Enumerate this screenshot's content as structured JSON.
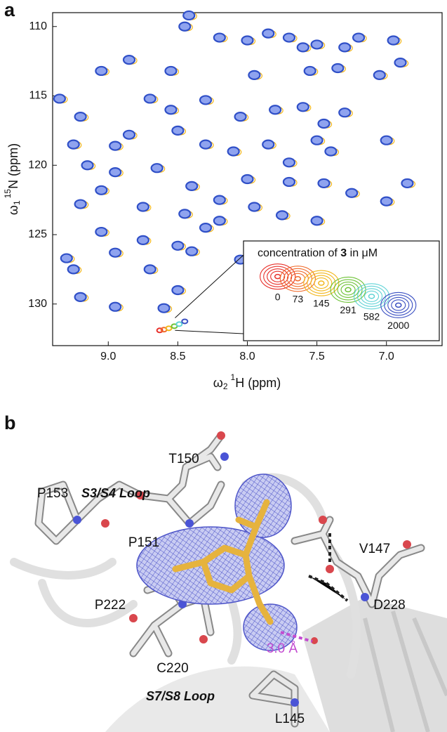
{
  "panel_labels": [
    "a",
    "b"
  ],
  "chart_data": {
    "type": "contour",
    "x_label": [
      "ω",
      "2",
      "1",
      "H (ppm)"
    ],
    "y_label": [
      "ω",
      "1",
      "15",
      "N (ppm)"
    ],
    "xlim": [
      9.4,
      6.6
    ],
    "ylim": [
      109,
      133
    ],
    "xticks": [
      {
        "value": 9,
        "label": "9.0"
      },
      8.5,
      {
        "value": 8,
        "label": "8.0"
      },
      7.5,
      {
        "value": 7,
        "label": "7.0"
      }
    ],
    "yticks": [
      110,
      115,
      120,
      125,
      130
    ],
    "color": "#2f4fc7",
    "x": [
      8.45,
      8.42,
      8.2,
      8.0,
      7.85,
      7.7,
      7.6,
      7.5,
      7.3,
      7.2,
      6.95,
      6.9,
      7.05,
      7.35,
      7.55,
      7.95,
      8.55,
      8.85,
      9.05,
      8.7,
      8.55,
      8.3,
      8.05,
      7.8,
      7.6,
      7.45,
      7.3,
      9.2,
      9.35,
      9.25,
      8.95,
      8.85,
      8.5,
      8.3,
      8.1,
      7.85,
      7.7,
      7.5,
      7.4,
      7.0,
      9.15,
      8.95,
      8.65,
      8.4,
      8.2,
      8.0,
      7.7,
      7.45,
      7.25,
      7.0,
      6.85,
      9.2,
      9.05,
      8.75,
      8.45,
      8.2,
      7.95,
      7.75,
      7.5,
      9.05,
      8.75,
      8.5,
      8.3,
      9.3,
      9.25,
      8.95,
      8.7,
      8.4,
      8.05,
      9.2,
      8.95,
      8.6,
      8.5
    ],
    "values": [
      110.0,
      109.2,
      110.8,
      111.0,
      110.5,
      110.8,
      111.5,
      111.3,
      111.5,
      110.8,
      111.0,
      112.6,
      113.5,
      113.0,
      113.2,
      113.5,
      113.2,
      112.4,
      113.2,
      115.2,
      116.0,
      115.3,
      116.5,
      116.0,
      115.8,
      117.0,
      116.2,
      116.5,
      115.2,
      118.5,
      118.6,
      117.8,
      117.5,
      118.5,
      119.0,
      118.5,
      119.8,
      118.2,
      119.0,
      118.2,
      120.0,
      120.5,
      120.2,
      121.5,
      122.5,
      121.0,
      121.2,
      121.3,
      122.0,
      122.6,
      121.3,
      122.8,
      121.8,
      123.0,
      123.5,
      124.0,
      123.0,
      123.6,
      124.0,
      124.8,
      125.4,
      125.8,
      124.5,
      126.7,
      127.5,
      126.3,
      127.5,
      126.2,
      126.8,
      129.5,
      130.2,
      130.3,
      129.0
    ],
    "inset": {
      "title": [
        "concentration of ",
        "3",
        " in μM"
      ],
      "xlim": [
        8.66,
        8.41
      ],
      "ylim": [
        131.0,
        132.15
      ],
      "series": [
        {
          "name": "0",
          "color": "#e8302a",
          "x": 8.63,
          "y": 131.9
        },
        {
          "name": "73",
          "color": "#f06a2a",
          "x": 8.6,
          "y": 131.85
        },
        {
          "name": "145",
          "color": "#f2b619",
          "x": 8.565,
          "y": 131.75
        },
        {
          "name": "291",
          "color": "#6cc234",
          "x": 8.525,
          "y": 131.6
        },
        {
          "name": "582",
          "color": "#5fd3d6",
          "x": 8.49,
          "y": 131.45
        },
        {
          "name": "2000",
          "color": "#3a4fc2",
          "x": 8.45,
          "y": 131.25
        }
      ]
    }
  },
  "structure": {
    "labels": [
      "T150",
      "S3/S4 Loop",
      "P153",
      "P151",
      "V147",
      "D228",
      "P222",
      "3.0 Å",
      "C220",
      "S7/S8 Loop",
      "L145"
    ]
  }
}
